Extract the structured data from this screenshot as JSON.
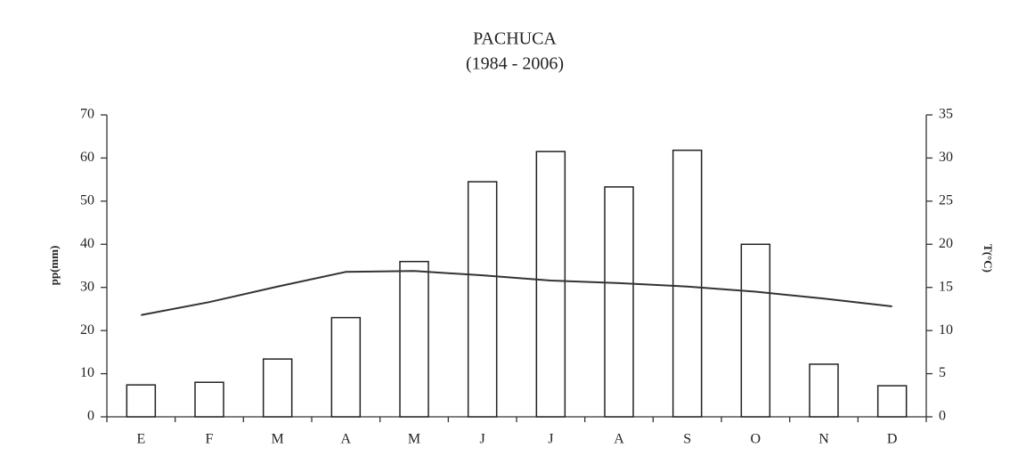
{
  "chart_data": {
    "type": "bar",
    "title": "PACHUCA",
    "subtitle": "(1984 - 2006)",
    "y_label": "pp(mm)",
    "y2_label": "T(°C)",
    "categories": [
      "E",
      "F",
      "M",
      "A",
      "M",
      "J",
      "J",
      "A",
      "S",
      "O",
      "N",
      "D"
    ],
    "series": [
      {
        "type": "bar",
        "color": "#ffffff",
        "values": [
          7.4,
          8,
          13.4,
          23,
          36,
          54.5,
          61.5,
          53.3,
          61.8,
          40,
          12.2,
          7.2
        ]
      },
      {
        "type": "line",
        "axis": "y2",
        "color": "#333333",
        "values": [
          11.8,
          13.3,
          15.1,
          16.8,
          16.9,
          16.4,
          15.8,
          15.5,
          15.1,
          14.5,
          13.7,
          12.8
        ]
      }
    ],
    "ylim": [
      0,
      70
    ],
    "yticks": [
      0,
      10,
      20,
      30,
      40,
      50,
      60,
      70
    ],
    "y2lim": [
      0,
      35
    ],
    "y2ticks": [
      0,
      5,
      10,
      15,
      20,
      25,
      30,
      35
    ],
    "grid": false
  }
}
